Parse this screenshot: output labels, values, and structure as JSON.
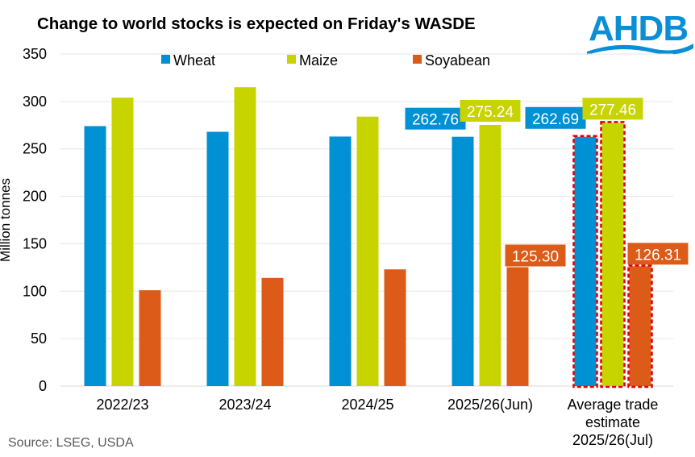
{
  "title": "Change to world stocks is expected on Friday's WASDE",
  "logo_text": "AHDB",
  "source": "Source: LSEG, USDA",
  "colors": {
    "Wheat": "#0090d4",
    "Maize": "#c8d400",
    "Soyabean": "#dc5b19",
    "highlight_border": "#e00000",
    "logo": "#0a8fd6"
  },
  "chart_data": {
    "type": "bar",
    "title": "Change to world stocks is expected on Friday's WASDE",
    "ylabel": "Million tonnes",
    "xlabel": "",
    "ylim": [
      0,
      350
    ],
    "yticks": [
      0,
      50,
      100,
      150,
      200,
      250,
      300,
      350
    ],
    "grid": true,
    "legend": "top",
    "categories": [
      "2022/23",
      "2023/24",
      "2024/25",
      "2025/26(Jun)",
      "Average trade estimate 2025/26(Jul)"
    ],
    "category_lines": [
      [
        "2022/23"
      ],
      [
        "2023/24"
      ],
      [
        "2024/25"
      ],
      [
        "2025/26(Jun)"
      ],
      [
        "Average trade",
        "estimate",
        "2025/26(Jul)"
      ]
    ],
    "series": [
      {
        "name": "Wheat",
        "values": [
          274,
          268,
          263,
          262.76,
          262.69
        ],
        "labels": [
          null,
          null,
          null,
          "262.76",
          "262.69"
        ]
      },
      {
        "name": "Maize",
        "values": [
          304,
          315,
          284,
          275.24,
          277.46
        ],
        "labels": [
          null,
          null,
          null,
          "275.24",
          "277.46"
        ]
      },
      {
        "name": "Soyabean",
        "values": [
          101,
          114,
          123,
          125.3,
          126.31
        ],
        "labels": [
          null,
          null,
          null,
          "125.30",
          "126.31"
        ]
      }
    ],
    "highlighted_category": "Average trade estimate 2025/26(Jul)"
  }
}
